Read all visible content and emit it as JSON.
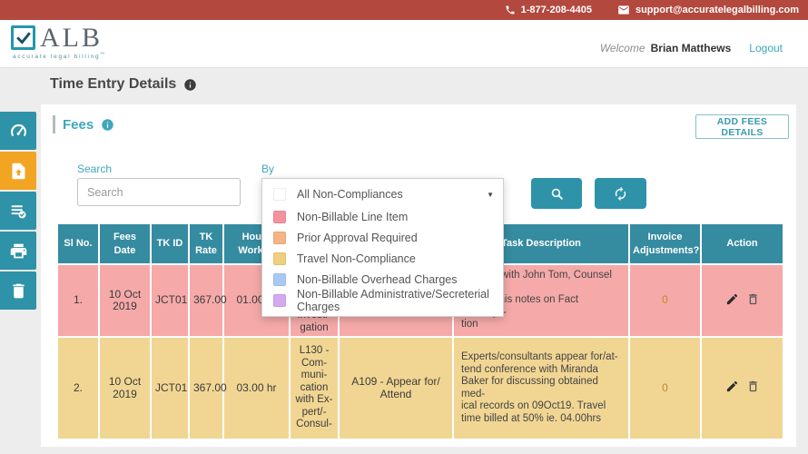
{
  "topbar": {
    "phone": "1-877-208-4405",
    "email": "support@accuratelegalbilling.com",
    "bg_color": "#b2483e"
  },
  "header": {
    "logo": {
      "name": "ALB",
      "tagline": "accurate legal billing",
      "tm": "™"
    },
    "welcome_label": "Welcome",
    "user_name": "Brian Matthews",
    "logout_label": "Logout"
  },
  "page": {
    "title": "Time Entry Details"
  },
  "sidebar": {
    "items": [
      {
        "icon": "dashboard-gauge-icon",
        "active": false
      },
      {
        "icon": "file-upload-icon",
        "active": true
      },
      {
        "icon": "list-check-icon",
        "active": false
      },
      {
        "icon": "printer-icon",
        "active": false
      },
      {
        "icon": "trash-icon",
        "active": false
      }
    ]
  },
  "fees": {
    "section_title": "Fees",
    "add_button": "ADD FEES DETAILS",
    "search_label": "Search",
    "search_placeholder": "Search",
    "search_value": "",
    "by_label": "By",
    "filter": {
      "selected": "All Non-Compliances",
      "options": [
        {
          "label": "All Non-Compliances",
          "color": "#ffffff"
        },
        {
          "label": "Non-Billable Line Item",
          "color": "#f3939e"
        },
        {
          "label": "Prior Approval Required",
          "color": "#f6b384"
        },
        {
          "label": "Travel Non-Compliance",
          "color": "#efd07e"
        },
        {
          "label": "Non-Billable Overhead Charges",
          "color": "#a9c9f4"
        },
        {
          "label": "Non-Billable Administrative/Secreterial Charges",
          "color": "#d5a9f1"
        }
      ]
    }
  },
  "table": {
    "headers": [
      "Sl No.",
      "Fees Date",
      "TK ID",
      "TK Rate",
      "Hours Worked",
      "",
      "",
      "Task Description",
      "Invoice Adjustments?",
      "Action"
    ],
    "rows": [
      {
        "sl_no": "1.",
        "fees_date": "10 Oct 2019",
        "tk_id": "JCT01",
        "tk_rate": "367.00",
        "hours_worked": "01.00 hr",
        "task_code": "L110 -\nFact\nInvesti-\ngation",
        "activity": "",
        "task_description": "Meeting with John Tom, Counsel to\ndiscuss his notes on Fact Investiga-\ntion",
        "invoice_adjustments": "0",
        "highlight_color": "#f5a9a9",
        "actions": [
          "edit",
          "delete"
        ]
      },
      {
        "sl_no": "2.",
        "fees_date": "10 Oct 2019",
        "tk_id": "JCT01",
        "tk_rate": "367.00",
        "hours_worked": "03.00 hr",
        "task_code": "L130 -\nCom-\nmuni-\ncation\nwith Ex-\npert/-\nConsul-",
        "activity": "A109 - Appear for/\nAttend",
        "task_description": "Experts/consultants appear for/at-\ntend conference with Miranda\nBaker for discussing obtained med-\nical records on 09Oct19. Travel\ntime billed at 50% ie. 04.00hrs",
        "invoice_adjustments": "0",
        "highlight_color": "#f1d693",
        "actions": [
          "edit",
          "delete"
        ]
      }
    ]
  },
  "colors": {
    "topbar_bg": "#b2483e",
    "teal": "#2e92a8",
    "table_header_bg": "#358ba0",
    "sidebar_active": "#f2a522",
    "link_teal": "#3fa7bc",
    "row_nonbillable": "#f5a9a9",
    "row_travel": "#f1d693"
  }
}
